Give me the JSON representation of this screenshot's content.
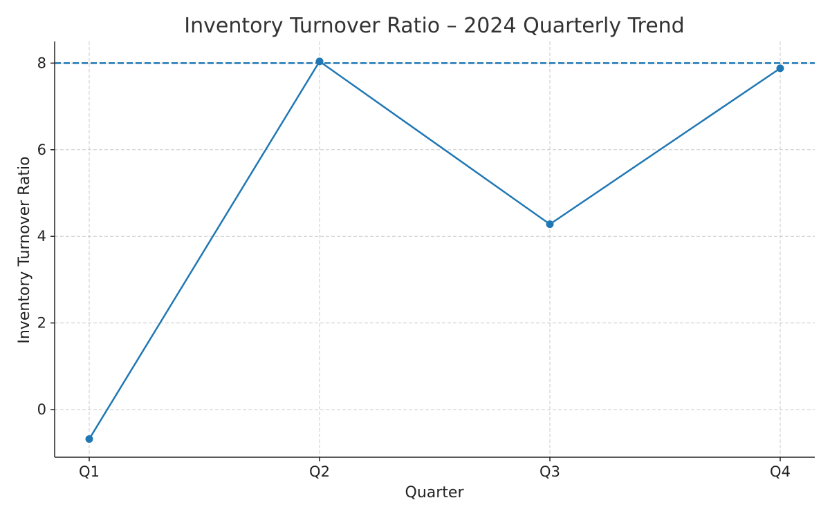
{
  "chart_data": {
    "type": "line",
    "title": "Inventory Turnover Ratio – 2024 Quarterly Trend",
    "xlabel": "Quarter",
    "ylabel": "Inventory Turnover Ratio",
    "categories": [
      "Q1",
      "Q2",
      "Q3",
      "Q4"
    ],
    "series": [
      {
        "values": [
          -0.68,
          8.04,
          4.28,
          7.88
        ],
        "color": "#1f77b4",
        "marker": "circle"
      }
    ],
    "reference_line": {
      "y": 8,
      "style": "dashed",
      "color": "#1f77b4"
    },
    "ylim": [
      -1.1,
      8.5
    ],
    "yticks": [
      0,
      2,
      4,
      6,
      8
    ],
    "grid": true,
    "grid_style": "dashed"
  }
}
